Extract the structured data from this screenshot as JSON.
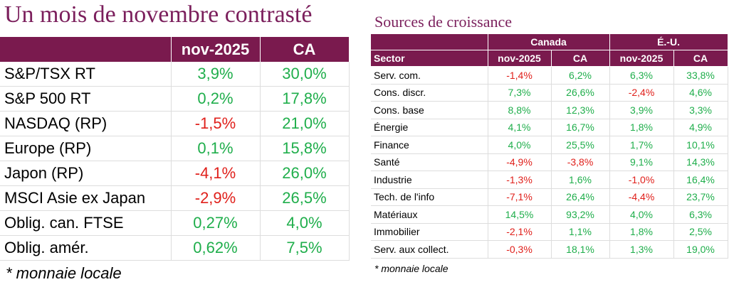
{
  "left": {
    "title": "Un mois de novembre contrasté",
    "columns": [
      "nov-2025",
      "CA"
    ],
    "rows": [
      [
        "S&P/TSX RT",
        "3,9%",
        "30,0%"
      ],
      [
        "S&P 500 RT",
        "0,2%",
        "17,8%"
      ],
      [
        "NASDAQ (RP)",
        "-1,5%",
        "21,0%"
      ],
      [
        "Europe (RP)",
        "0,1%",
        "15,8%"
      ],
      [
        "Japon (RP)",
        "-4,1%",
        "26,0%"
      ],
      [
        "MSCI Asie ex Japan",
        "-2,9%",
        "26,5%"
      ],
      [
        "Oblig. can. FTSE",
        "0,27%",
        "4,0%"
      ],
      [
        "Oblig. amér.",
        "0,62%",
        "7,5%"
      ]
    ],
    "footnote": "* monnaie locale"
  },
  "right": {
    "title": "Sources de croissance",
    "groups": [
      "Canada",
      "É.-U."
    ],
    "columns": [
      "Sector",
      "nov-2025",
      "CA",
      "nov-2025",
      "CA"
    ],
    "rows": [
      [
        "Serv. com.",
        "-1,4%",
        "6,2%",
        "6,3%",
        "33,8%"
      ],
      [
        "Cons. discr.",
        "7,3%",
        "26,6%",
        "-2,4%",
        "4,6%"
      ],
      [
        "Cons. base",
        "8,8%",
        "12,3%",
        "3,9%",
        "3,3%"
      ],
      [
        "Énergie",
        "4,1%",
        "16,7%",
        "1,8%",
        "4,9%"
      ],
      [
        "Finance",
        "4,0%",
        "25,5%",
        "1,7%",
        "10,1%"
      ],
      [
        "Santé",
        "-4,9%",
        "-3,8%",
        "9,1%",
        "14,3%"
      ],
      [
        "Industrie",
        "-1,3%",
        "1,6%",
        "-1,0%",
        "16,4%"
      ],
      [
        "Tech. de l'info",
        "-7,1%",
        "26,4%",
        "-4,4%",
        "23,7%"
      ],
      [
        "Matériaux",
        "14,5%",
        "93,2%",
        "4,0%",
        "6,3%"
      ],
      [
        "Immobilier",
        "-2,1%",
        "1,1%",
        "1,8%",
        "2,5%"
      ],
      [
        "Serv. aux collect.",
        "-0,3%",
        "18,1%",
        "1,3%",
        "19,0%"
      ]
    ],
    "footnote": "* monnaie locale"
  }
}
